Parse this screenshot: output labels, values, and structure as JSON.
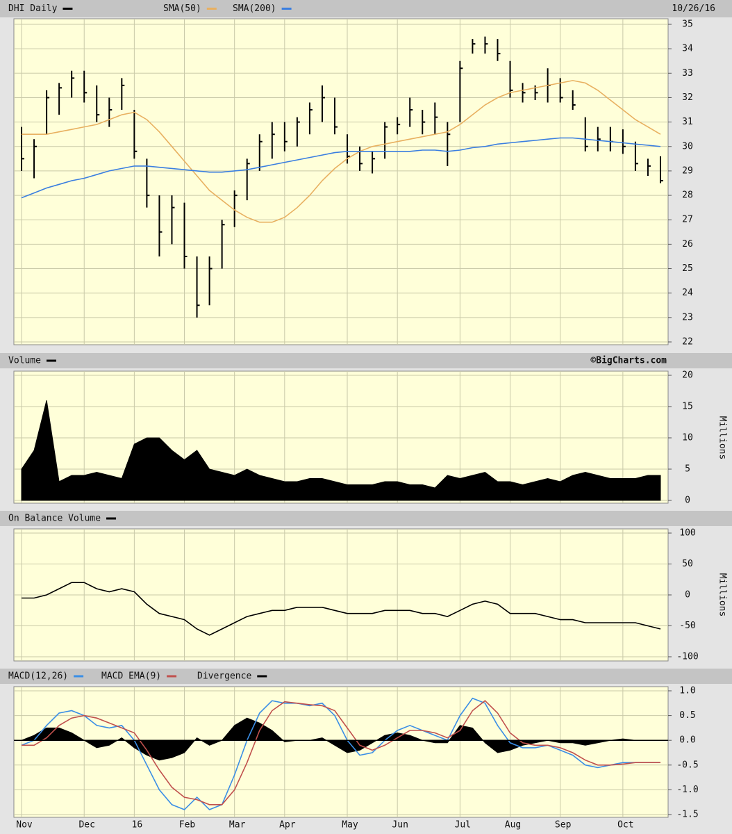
{
  "chart_data": [
    {
      "type": "ohlc",
      "date": "10/26/16",
      "ylim": [
        22,
        35
      ],
      "yticks": [
        22,
        23,
        24,
        25,
        26,
        27,
        28,
        29,
        30,
        31,
        32,
        33,
        34,
        35
      ],
      "grid": true,
      "series": [
        {
          "name": "DHI Daily",
          "color": "#000000",
          "high": [
            30.8,
            30.3,
            32.3,
            32.6,
            33.1,
            33.1,
            32.5,
            32,
            32.8,
            31.5,
            29.5,
            28,
            28,
            27.7,
            25.5,
            25.5,
            27,
            28.2,
            29.5,
            30.5,
            31,
            31,
            31.2,
            31.8,
            32.5,
            32,
            30.5,
            30,
            29.8,
            31,
            31.2,
            32,
            31.5,
            31.8,
            31,
            33.5,
            34.4,
            34.5,
            34.4,
            33.5,
            32.6,
            32.5,
            33.2,
            32.8,
            32.3,
            31.2,
            30.8,
            30.8,
            30.7,
            30.2,
            29.5,
            29.6
          ],
          "low": [
            29,
            28.7,
            30.5,
            31.3,
            32,
            31.8,
            31,
            30.8,
            31.5,
            29.5,
            27.5,
            25.5,
            26,
            25,
            23,
            23.5,
            25,
            26.7,
            27.8,
            29,
            29.5,
            29.8,
            30,
            30.5,
            31,
            30.5,
            29.3,
            29,
            28.9,
            29.5,
            30.5,
            30.8,
            30.5,
            30.5,
            29.2,
            31,
            33.8,
            33.8,
            33.5,
            32,
            31.8,
            31.9,
            31.8,
            31.8,
            31.5,
            29.8,
            29.8,
            29.8,
            29.7,
            29,
            28.8,
            28.5
          ],
          "close": [
            29.5,
            30,
            32,
            32.4,
            32.8,
            32.2,
            31.3,
            31.5,
            32.5,
            29.8,
            28,
            26.5,
            27.5,
            25.5,
            23.5,
            25,
            26.8,
            28,
            29.3,
            30.2,
            30.5,
            30.2,
            31,
            31.5,
            32,
            30.8,
            29.6,
            29.3,
            29.5,
            30.8,
            30.9,
            31.5,
            31,
            31.2,
            30.5,
            33.2,
            34.2,
            34.2,
            33.8,
            32.3,
            32.2,
            32.2,
            32.5,
            32,
            31.7,
            30,
            30.3,
            30.2,
            30,
            29.3,
            29.2,
            28.6
          ]
        },
        {
          "name": "SMA(50)",
          "color": "#e8b060",
          "values": [
            30.5,
            30.5,
            30.5,
            30.6,
            30.7,
            30.8,
            30.9,
            31.1,
            31.3,
            31.4,
            31.1,
            30.6,
            30.0,
            29.4,
            28.8,
            28.2,
            27.8,
            27.4,
            27.1,
            26.9,
            26.9,
            27.1,
            27.5,
            28.0,
            28.6,
            29.1,
            29.5,
            29.8,
            30.0,
            30.1,
            30.2,
            30.3,
            30.4,
            30.5,
            30.6,
            30.9,
            31.3,
            31.7,
            32.0,
            32.2,
            32.3,
            32.4,
            32.5,
            32.6,
            32.7,
            32.6,
            32.3,
            31.9,
            31.5,
            31.1,
            30.8,
            30.5
          ]
        },
        {
          "name": "SMA(200)",
          "color": "#3a7ee0",
          "values": [
            27.9,
            28.1,
            28.3,
            28.45,
            28.6,
            28.7,
            28.85,
            29.0,
            29.1,
            29.2,
            29.2,
            29.15,
            29.1,
            29.05,
            29.0,
            28.95,
            28.95,
            29.0,
            29.05,
            29.15,
            29.25,
            29.35,
            29.45,
            29.55,
            29.65,
            29.75,
            29.8,
            29.8,
            29.8,
            29.8,
            29.8,
            29.8,
            29.85,
            29.85,
            29.8,
            29.85,
            29.95,
            30.0,
            30.1,
            30.15,
            30.2,
            30.25,
            30.3,
            30.35,
            30.35,
            30.3,
            30.25,
            30.2,
            30.15,
            30.1,
            30.05,
            30.0
          ]
        }
      ]
    },
    {
      "type": "area",
      "watermark": "©BigCharts.com",
      "ylabel": "Millions",
      "ylim": [
        0,
        20
      ],
      "yticks": [
        0,
        5,
        10,
        15,
        20
      ],
      "grid": true,
      "series": [
        {
          "name": "Volume",
          "color": "#000000",
          "values": [
            5,
            8,
            16,
            3,
            4,
            4,
            4.5,
            4,
            3.5,
            9,
            10,
            10,
            8,
            6.5,
            8,
            5,
            4.5,
            4,
            5,
            4,
            3.5,
            3,
            3,
            3.5,
            3.5,
            3,
            2.5,
            2.5,
            2.5,
            3,
            3,
            2.5,
            2.5,
            2,
            4,
            3.5,
            4,
            4.5,
            3,
            3,
            2.5,
            3,
            3.5,
            3,
            4,
            4.5,
            4,
            3.5,
            3.5,
            3.5,
            4,
            4
          ]
        }
      ]
    },
    {
      "type": "line",
      "ylabel": "Millions",
      "ylim": [
        -100,
        100
      ],
      "yticks": [
        -100,
        -50,
        0,
        50,
        100
      ],
      "grid": true,
      "series": [
        {
          "name": "On Balance Volume",
          "color": "#000000",
          "values": [
            -5,
            -5,
            0,
            10,
            20,
            20,
            10,
            5,
            10,
            5,
            -15,
            -30,
            -35,
            -40,
            -55,
            -65,
            -55,
            -45,
            -35,
            -30,
            -25,
            -25,
            -20,
            -20,
            -20,
            -25,
            -30,
            -30,
            -30,
            -25,
            -25,
            -25,
            -30,
            -30,
            -35,
            -25,
            -15,
            -10,
            -15,
            -30,
            -30,
            -30,
            -35,
            -40,
            -40,
            -45,
            -45,
            -45,
            -45,
            -45,
            -50,
            -55
          ]
        }
      ]
    },
    {
      "type": "line",
      "ylim": [
        -1.5,
        1
      ],
      "yticks": [
        -1.5,
        {
          "value": -1,
          "label": "-1.0"
        },
        -0.5,
        {
          "value": 0,
          "label": "0.0"
        },
        0.5,
        {
          "value": 1,
          "label": "1.0"
        }
      ],
      "grid": true,
      "categories": [
        "Nov",
        null,
        null,
        null,
        null,
        "Dec",
        null,
        null,
        null,
        "16",
        null,
        null,
        null,
        "Feb",
        null,
        null,
        null,
        "Mar",
        null,
        null,
        null,
        "Apr",
        null,
        null,
        null,
        null,
        "May",
        null,
        null,
        null,
        "Jun",
        null,
        null,
        null,
        null,
        "Jul",
        null,
        null,
        null,
        "Aug",
        null,
        null,
        null,
        "Sep",
        null,
        null,
        null,
        null,
        "Oct",
        null,
        null,
        null
      ],
      "series": [
        {
          "name": "MACD(12,26)",
          "color": "#3a8ee6",
          "values": [
            -0.1,
            0,
            0.3,
            0.55,
            0.6,
            0.5,
            0.3,
            0.25,
            0.3,
            0,
            -0.5,
            -1.0,
            -1.3,
            -1.4,
            -1.15,
            -1.4,
            -1.3,
            -0.7,
            0,
            0.55,
            0.8,
            0.75,
            0.75,
            0.7,
            0.75,
            0.5,
            0,
            -0.3,
            -0.25,
            0,
            0.2,
            0.3,
            0.2,
            0.1,
            0,
            0.5,
            0.85,
            0.75,
            0.3,
            -0.05,
            -0.15,
            -0.15,
            -0.1,
            -0.2,
            -0.3,
            -0.5,
            -0.55,
            -0.5,
            -0.45,
            -0.45,
            -0.45,
            -0.45
          ]
        },
        {
          "name": "MACD EMA(9)",
          "color": "#c0504d",
          "values": [
            -0.1,
            -0.1,
            0.05,
            0.3,
            0.45,
            0.5,
            0.45,
            0.35,
            0.25,
            0.15,
            -0.2,
            -0.6,
            -0.95,
            -1.15,
            -1.2,
            -1.3,
            -1.3,
            -1.0,
            -0.45,
            0.2,
            0.6,
            0.78,
            0.75,
            0.72,
            0.7,
            0.6,
            0.25,
            -0.1,
            -0.2,
            -0.1,
            0.05,
            0.2,
            0.2,
            0.15,
            0.05,
            0.2,
            0.6,
            0.8,
            0.55,
            0.15,
            -0.05,
            -0.1,
            -0.1,
            -0.15,
            -0.25,
            -0.4,
            -0.5,
            -0.5,
            -0.48,
            -0.45,
            -0.45,
            -0.45
          ]
        },
        {
          "name": "Divergence",
          "color": "#000000",
          "area": true,
          "values": [
            0,
            0.1,
            0.25,
            0.25,
            0.15,
            0,
            -0.15,
            -0.1,
            0.05,
            -0.15,
            -0.3,
            -0.4,
            -0.35,
            -0.25,
            0.05,
            -0.1,
            0,
            0.3,
            0.45,
            0.35,
            0.2,
            -0.03,
            0,
            0,
            0.05,
            -0.1,
            -0.25,
            -0.2,
            -0.05,
            0.1,
            0.15,
            0.1,
            0,
            -0.05,
            -0.05,
            0.3,
            0.25,
            -0.05,
            -0.25,
            -0.2,
            -0.1,
            -0.05,
            0,
            -0.05,
            -0.05,
            -0.1,
            -0.05,
            0,
            0.03,
            0,
            0,
            0
          ]
        }
      ]
    }
  ]
}
